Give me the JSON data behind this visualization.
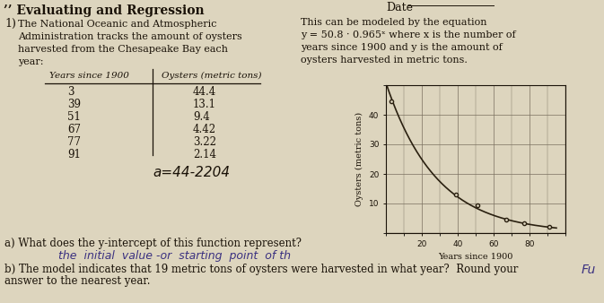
{
  "title": "Evaluating and Regression",
  "title_prefix": "’’ ",
  "date_label": "Date",
  "problem_number": "1)",
  "left_text_lines": [
    "The National Oceanic and Atmospheric",
    "Administration tracks the amount of oysters",
    "harvested from the Chesapeake Bay each",
    "year:"
  ],
  "right_text_lines": [
    "This can be modeled by the equation",
    "y = 50.8 · 0.965ˣ where x is the number of",
    "years since 1900 and y is the amount of",
    "oysters harvested in metric tons."
  ],
  "table_headers": [
    "Years since 1900",
    "Oysters (metric tons)"
  ],
  "table_data": [
    [
      3,
      44.4
    ],
    [
      39,
      13.1
    ],
    [
      51,
      9.4
    ],
    [
      67,
      4.42
    ],
    [
      77,
      3.22
    ],
    [
      91,
      2.14
    ]
  ],
  "handwritten_note": "a=44-2204",
  "xlabel": "Years since 1900",
  "ylabel": "Oysters (metric tons)",
  "xlim": [
    0,
    100
  ],
  "ylim": [
    0,
    50
  ],
  "xticks": [
    20,
    40,
    60,
    80
  ],
  "yticks": [
    10,
    20,
    30,
    40
  ],
  "question_a": "a) What does the y-intercept of this function represent?",
  "handwritten_a": "the initial value -or  starting point of th",
  "question_b": "b) The model indicates that 19 metric tons of oysters were harvested in what year?  Round your",
  "question_b2": "answer to the nearest year.",
  "handwritten_b": "Fu",
  "bg_color": "#ddd5be",
  "text_color": "#1a1208",
  "line_color": "#2a2010",
  "grid_color": "#7a7060",
  "data_point_color": "#2a2010",
  "handwrite_color": "#3a3080"
}
